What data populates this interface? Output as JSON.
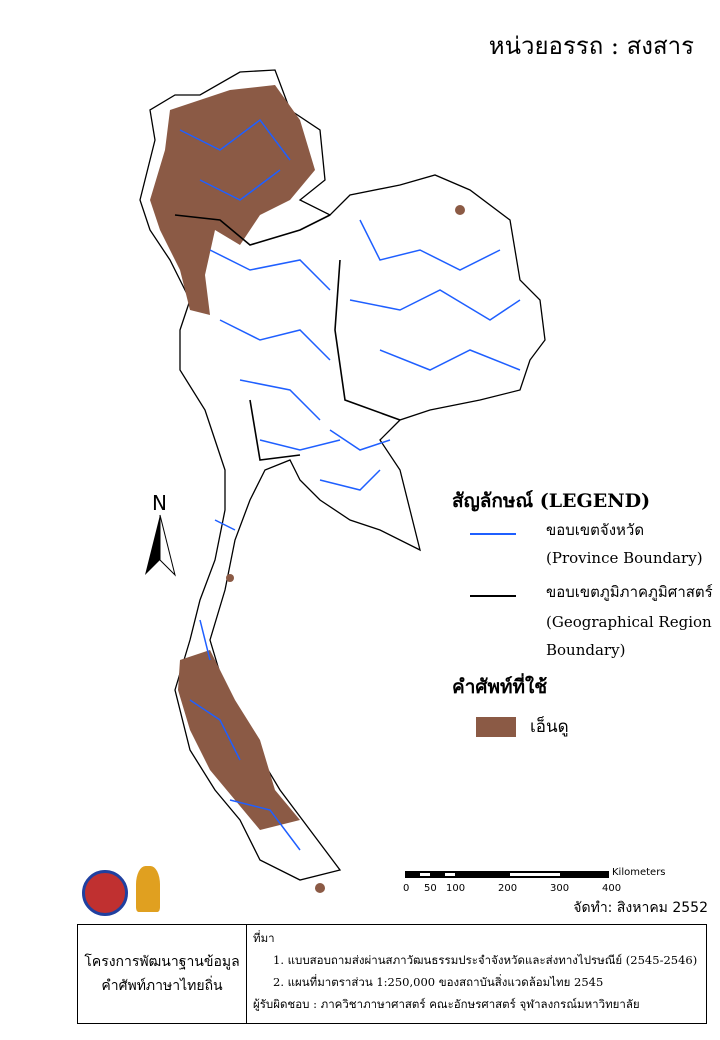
{
  "header": {
    "unit_title": "หน่วยอรรถ : สงสาร"
  },
  "map": {
    "north_label": "N",
    "colors": {
      "province_boundary": "#1f5fff",
      "region_boundary": "#000000",
      "term_fill": "#8b5a45"
    }
  },
  "legend": {
    "title": "สัญลักษณ์ (LEGEND)",
    "items": [
      {
        "label_th": "ขอบเขตจังหวัด",
        "label_en": "(Province Boundary)",
        "color": "#1f5fff"
      },
      {
        "label_th": "ขอบเขตภูมิภาคภูมิศาสตร์",
        "label_en_1": "(Geographical Region",
        "label_en_2": "Boundary)",
        "color": "#000000"
      }
    ],
    "terms_title": "คำศัพท์ที่ใช้",
    "terms": [
      {
        "label": "เอ็นดู",
        "color": "#8b5a45"
      }
    ]
  },
  "scale_bar": {
    "unit": "Kilometers",
    "ticks": [
      "0",
      "50",
      "100",
      "200",
      "300",
      "400"
    ]
  },
  "date": "จัดทำ: สิงหาคม  2552",
  "info": {
    "project_1": "โครงการพัฒนาฐานข้อมูล",
    "project_2": "คำศัพท์ภาษาไทยถิ่น",
    "source_title": "ที่มา",
    "source_1": "1. แบบสอบถามส่งผ่านสภาวัฒนธรรมประจำจังหวัดและส่งทางไปรษณีย์ (2545-2546)",
    "source_2": "2. แผนที่มาตราส่วน 1:250,000 ของสถาบันสิ่งแวดล้อมไทย 2545",
    "responsible": "ผู้รับผิดชอบ : ภาควิชาภาษาศาสตร์ คณะอักษรศาสตร์ จุฬาลงกรณ์มหาวิทยาลัย"
  }
}
